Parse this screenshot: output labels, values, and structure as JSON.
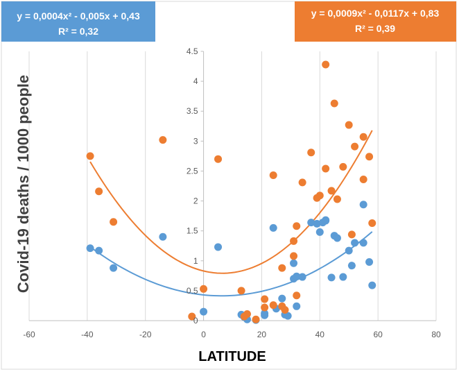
{
  "chart_data": {
    "type": "scatter",
    "xlabel": "LATITUDE",
    "ylabel": "Covid-19 deaths / 1000 people",
    "xlim": [
      -60,
      80
    ],
    "ylim": [
      0,
      4.5
    ],
    "x_ticks": [
      "-60",
      "-40",
      "-20",
      "0",
      "20",
      "40",
      "60",
      "80"
    ],
    "y_ticks": [
      "0",
      "0.5",
      "1",
      "1.5",
      "2",
      "2.5",
      "3",
      "3.5",
      "4",
      "4.5"
    ],
    "grid": "vertical",
    "colors": {
      "blue": "#5b9bd5",
      "orange": "#ed7d31",
      "blue_box": "#5b9bd5",
      "orange_box": "#ed7d31"
    },
    "series": [
      {
        "color": "#5b9bd5",
        "trendline": {
          "type": "polynomial",
          "coefficients": [
            0.0004,
            -0.005,
            0.43
          ]
        },
        "equation": "y = 0,0004x² - 0,005x + 0,43",
        "r2": "R² = 0,32",
        "points": [
          [
            -39,
            1.21
          ],
          [
            -36,
            1.17
          ],
          [
            -31,
            0.88
          ],
          [
            -14,
            1.4
          ],
          [
            0,
            0.15
          ],
          [
            5,
            1.23
          ],
          [
            13,
            0.1
          ],
          [
            14,
            0.06
          ],
          [
            15,
            0.02
          ],
          [
            18,
            0.01
          ],
          [
            21,
            0.09
          ],
          [
            21,
            0.12
          ],
          [
            24,
            1.55
          ],
          [
            25,
            0.2
          ],
          [
            27,
            0.37
          ],
          [
            28,
            0.1
          ],
          [
            29,
            0.08
          ],
          [
            31,
            0.96
          ],
          [
            31,
            0.7
          ],
          [
            32,
            0.24
          ],
          [
            32,
            0.74
          ],
          [
            34,
            0.73
          ],
          [
            37,
            1.64
          ],
          [
            39,
            1.62
          ],
          [
            40,
            1.48
          ],
          [
            41,
            1.64
          ],
          [
            42,
            1.68
          ],
          [
            42,
            1.67
          ],
          [
            44,
            0.72
          ],
          [
            45,
            1.42
          ],
          [
            46,
            1.38
          ],
          [
            48,
            0.73
          ],
          [
            50,
            1.17
          ],
          [
            51,
            0.92
          ],
          [
            52,
            1.3
          ],
          [
            55,
            1.3
          ],
          [
            55,
            1.94
          ],
          [
            57,
            0.98
          ],
          [
            58,
            0.59
          ]
        ]
      },
      {
        "color": "#ed7d31",
        "trendline": {
          "type": "polynomial",
          "coefficients": [
            0.0009,
            -0.0117,
            0.83
          ]
        },
        "equation": "y = 0,0009x² - 0,0117x + 0,83",
        "r2": "R² = 0,39",
        "points": [
          [
            -39,
            2.75
          ],
          [
            -36,
            2.16
          ],
          [
            -31,
            1.65
          ],
          [
            -14,
            3.02
          ],
          [
            -4,
            0.07
          ],
          [
            0,
            0.53
          ],
          [
            5,
            2.7
          ],
          [
            13,
            0.5
          ],
          [
            14,
            0.07
          ],
          [
            15,
            0.11
          ],
          [
            18,
            0.02
          ],
          [
            21,
            0.36
          ],
          [
            21,
            0.22
          ],
          [
            24,
            2.43
          ],
          [
            24,
            0.26
          ],
          [
            27,
            0.88
          ],
          [
            27,
            0.24
          ],
          [
            28,
            0.18
          ],
          [
            31,
            1.33
          ],
          [
            31,
            1.08
          ],
          [
            32,
            0.42
          ],
          [
            32,
            1.58
          ],
          [
            34,
            2.31
          ],
          [
            37,
            2.81
          ],
          [
            39,
            2.05
          ],
          [
            40,
            2.09
          ],
          [
            42,
            2.54
          ],
          [
            42,
            4.28
          ],
          [
            44,
            2.17
          ],
          [
            45,
            3.63
          ],
          [
            46,
            2.03
          ],
          [
            48,
            2.57
          ],
          [
            50,
            3.27
          ],
          [
            51,
            1.44
          ],
          [
            52,
            2.91
          ],
          [
            55,
            3.07
          ],
          [
            55,
            2.36
          ],
          [
            57,
            2.74
          ],
          [
            58,
            1.63
          ]
        ]
      }
    ]
  },
  "annotations": {
    "left_equation": "y = 0,0004x² - 0,005x + 0,43",
    "left_r2": "R² = 0,32",
    "right_equation": "y = 0,0009x² - 0,0117x + 0,83",
    "right_r2": "R² = 0,39"
  }
}
